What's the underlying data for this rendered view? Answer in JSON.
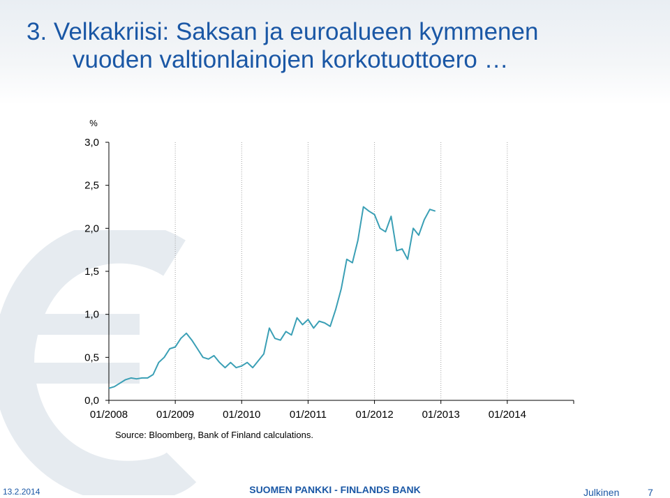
{
  "slide": {
    "title_line1": "3. Velkakriisi: Saksan ja euroalueen kymmenen",
    "title_line2": "vuoden valtionlainojen korkotuottoero …",
    "source": "Source: Bloomberg, Bank of Finland calculations.",
    "footer_date": "13.2.2014",
    "footer_center": "SUOMEN PANKKI - FINLANDS BANK",
    "footer_class": "Julkinen",
    "footer_page": "7"
  },
  "colors": {
    "title": "#1a57a5",
    "series": "#3a9fb5",
    "grid": "#a0a0a0",
    "watermark": "#e6ebf0"
  },
  "icons": {
    "watermark": "euro-symbol"
  },
  "chart_data": {
    "type": "line",
    "title": "",
    "xlabel": "",
    "ylabel": "%",
    "ylim": [
      0,
      3.0
    ],
    "yticks": [
      "0,0",
      "0,5",
      "1,0",
      "1,5",
      "2,0",
      "2,5",
      "3,0"
    ],
    "xticks": [
      "01/2008",
      "01/2009",
      "01/2010",
      "01/2011",
      "01/2012",
      "01/2013",
      "01/2014"
    ],
    "xlim": [
      "2008-01",
      "2015-01"
    ],
    "grid": "vertical-dotted",
    "legend": "none",
    "series": [
      {
        "values": [
          [
            "2008-01",
            0.14
          ],
          [
            "2008-02",
            0.16
          ],
          [
            "2008-03",
            0.2
          ],
          [
            "2008-04",
            0.24
          ],
          [
            "2008-05",
            0.26
          ],
          [
            "2008-06",
            0.25
          ],
          [
            "2008-07",
            0.26
          ],
          [
            "2008-08",
            0.26
          ],
          [
            "2008-09",
            0.3
          ],
          [
            "2008-10",
            0.44
          ],
          [
            "2008-11",
            0.5
          ],
          [
            "2008-12",
            0.6
          ],
          [
            "2009-01",
            0.62
          ],
          [
            "2009-02",
            0.72
          ],
          [
            "2009-03",
            0.78
          ],
          [
            "2009-04",
            0.7
          ],
          [
            "2009-05",
            0.6
          ],
          [
            "2009-06",
            0.5
          ],
          [
            "2009-07",
            0.48
          ],
          [
            "2009-08",
            0.52
          ],
          [
            "2009-09",
            0.44
          ],
          [
            "2009-10",
            0.38
          ],
          [
            "2009-11",
            0.44
          ],
          [
            "2009-12",
            0.38
          ],
          [
            "2010-01",
            0.4
          ],
          [
            "2010-02",
            0.44
          ],
          [
            "2010-03",
            0.38
          ],
          [
            "2010-04",
            0.46
          ],
          [
            "2010-05",
            0.54
          ],
          [
            "2010-06",
            0.84
          ],
          [
            "2010-07",
            0.72
          ],
          [
            "2010-08",
            0.7
          ],
          [
            "2010-09",
            0.8
          ],
          [
            "2010-10",
            0.76
          ],
          [
            "2010-11",
            0.96
          ],
          [
            "2010-12",
            0.88
          ],
          [
            "2011-01",
            0.94
          ],
          [
            "2011-02",
            0.84
          ],
          [
            "2011-03",
            0.92
          ],
          [
            "2011-04",
            0.9
          ],
          [
            "2011-05",
            0.86
          ],
          [
            "2011-06",
            1.06
          ],
          [
            "2011-07",
            1.3
          ],
          [
            "2011-08",
            1.64
          ],
          [
            "2011-09",
            1.6
          ],
          [
            "2011-10",
            1.86
          ],
          [
            "2011-11",
            2.25
          ],
          [
            "2011-12",
            2.2
          ],
          [
            "2012-01",
            2.16
          ],
          [
            "2012-02",
            2.0
          ],
          [
            "2012-03",
            1.96
          ],
          [
            "2012-04",
            2.14
          ],
          [
            "2012-05",
            1.74
          ],
          [
            "2012-06",
            1.76
          ],
          [
            "2012-07",
            1.64
          ],
          [
            "2012-08",
            2.0
          ],
          [
            "2012-09",
            1.92
          ],
          [
            "2012-10",
            2.1
          ],
          [
            "2012-11",
            2.22
          ],
          [
            "2012-12",
            2.2
          ]
        ]
      }
    ]
  }
}
